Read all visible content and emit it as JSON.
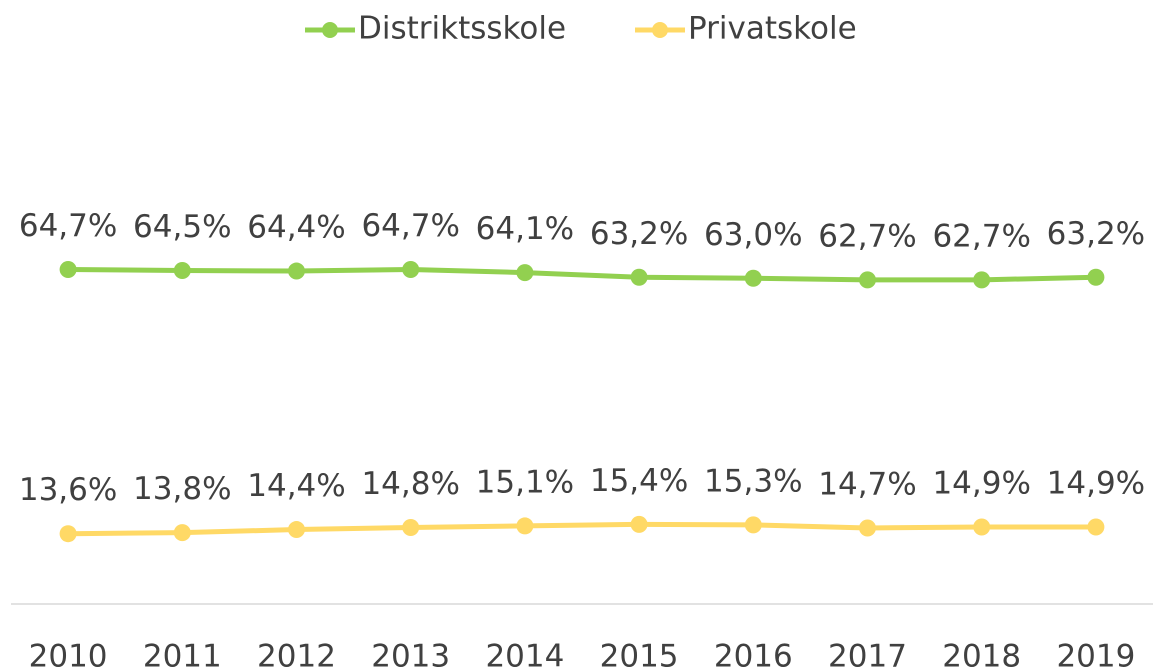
{
  "chart_data": {
    "type": "line",
    "categories": [
      "2010",
      "2011",
      "2012",
      "2013",
      "2014",
      "2015",
      "2016",
      "2017",
      "2018",
      "2019"
    ],
    "series": [
      {
        "name": "Distriktsskole",
        "color": "#92d050",
        "values": [
          64.7,
          64.5,
          64.4,
          64.7,
          64.1,
          63.2,
          63.0,
          62.7,
          62.7,
          63.2
        ],
        "value_labels": [
          "64,7%",
          "64,5%",
          "64,4%",
          "64,7%",
          "64,1%",
          "63,2%",
          "63,0%",
          "62,7%",
          "62,7%",
          "63,2%"
        ]
      },
      {
        "name": "Privatskole",
        "color": "#ffd966",
        "values": [
          13.6,
          13.8,
          14.4,
          14.8,
          15.1,
          15.4,
          15.3,
          14.7,
          14.9,
          14.9
        ],
        "value_labels": [
          "13,6%",
          "13,8%",
          "14,4%",
          "14,8%",
          "15,1%",
          "15,4%",
          "15,3%",
          "14,7%",
          "14,9%",
          "14,9%"
        ]
      }
    ],
    "ylim": [
      0,
      100
    ],
    "legend": "top"
  }
}
